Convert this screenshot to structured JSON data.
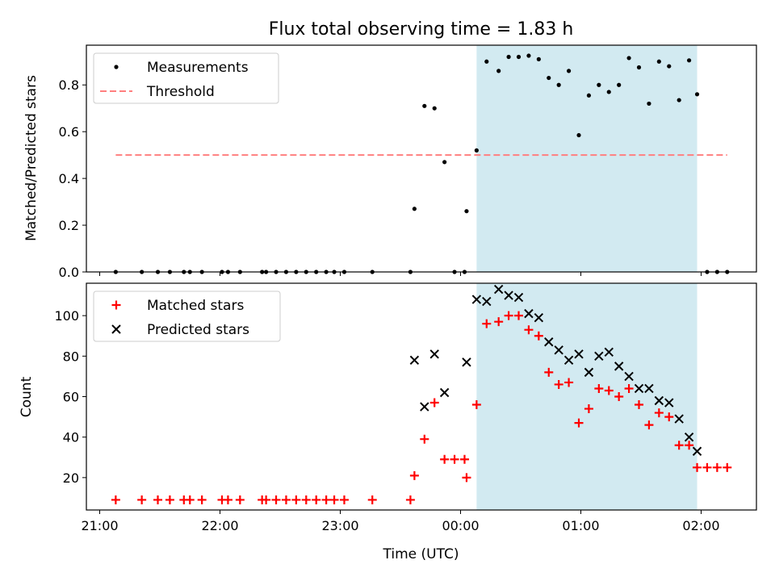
{
  "chart_data": [
    {
      "type": "scatter",
      "title": "Flux total observing time = 1.83 h",
      "xlabel": "",
      "ylabel": "Matched/Predicted stars",
      "ylim": [
        0,
        0.97
      ],
      "yticks": [
        "0.0",
        "0.2",
        "0.4",
        "0.6",
        "0.8"
      ],
      "highlight_span": {
        "start": "00:08",
        "end": "01:58",
        "color": "#add8e6"
      },
      "legend_position": "upper-left",
      "series": [
        {
          "name": "Measurements",
          "marker": "dot",
          "color": "#000000",
          "points": [
            [
              "21:08",
              0
            ],
            [
              "21:21",
              0
            ],
            [
              "21:29",
              0
            ],
            [
              "21:35",
              0
            ],
            [
              "21:42",
              0
            ],
            [
              "21:45",
              0
            ],
            [
              "21:51",
              0
            ],
            [
              "22:01",
              0
            ],
            [
              "22:04",
              0
            ],
            [
              "22:10",
              0
            ],
            [
              "22:21",
              0
            ],
            [
              "22:23",
              0
            ],
            [
              "22:28",
              0
            ],
            [
              "22:33",
              0
            ],
            [
              "22:38",
              0
            ],
            [
              "22:43",
              0
            ],
            [
              "22:48",
              0
            ],
            [
              "22:53",
              0
            ],
            [
              "22:57",
              0
            ],
            [
              "23:02",
              0
            ],
            [
              "23:16",
              0
            ],
            [
              "23:35",
              0
            ],
            [
              "23:37",
              0.27
            ],
            [
              "23:42",
              0.71
            ],
            [
              "23:47",
              0.7
            ],
            [
              "23:52",
              0.47
            ],
            [
              "23:57",
              0
            ],
            [
              "00:02",
              0
            ],
            [
              "00:03",
              0.26
            ],
            [
              "00:08",
              0.52
            ],
            [
              "00:13",
              0.9
            ],
            [
              "00:19",
              0.86
            ],
            [
              "00:24",
              0.92
            ],
            [
              "00:29",
              0.92
            ],
            [
              "00:34",
              0.925
            ],
            [
              "00:39",
              0.91
            ],
            [
              "00:44",
              0.83
            ],
            [
              "00:49",
              0.8
            ],
            [
              "00:54",
              0.86
            ],
            [
              "00:59",
              0.585
            ],
            [
              "01:04",
              0.755
            ],
            [
              "01:09",
              0.8
            ],
            [
              "01:14",
              0.77
            ],
            [
              "01:19",
              0.8
            ],
            [
              "01:24",
              0.915
            ],
            [
              "01:29",
              0.875
            ],
            [
              "01:34",
              0.72
            ],
            [
              "01:39",
              0.9
            ],
            [
              "01:44",
              0.88
            ],
            [
              "01:49",
              0.735
            ],
            [
              "01:54",
              0.905
            ],
            [
              "01:58",
              0.76
            ],
            [
              "02:03",
              0
            ],
            [
              "02:08",
              0
            ],
            [
              "02:13",
              0
            ]
          ]
        },
        {
          "name": "Threshold",
          "marker": "dashed-line",
          "color": "#ff7f7f",
          "points": [
            [
              "21:08",
              0.5
            ],
            [
              "02:13",
              0.5
            ]
          ]
        }
      ]
    },
    {
      "type": "scatter",
      "title": "",
      "xlabel": "Time (UTC)",
      "ylabel": "Count",
      "ylim": [
        4,
        116
      ],
      "yticks": [
        "20",
        "40",
        "60",
        "80",
        "100"
      ],
      "xticks": [
        "21:00",
        "22:00",
        "23:00",
        "00:00",
        "01:00",
        "02:00"
      ],
      "highlight_span": {
        "start": "00:08",
        "end": "01:58",
        "color": "#add8e6"
      },
      "legend_position": "upper-left",
      "series": [
        {
          "name": "Matched stars",
          "marker": "plus",
          "color": "#ff0000",
          "points": [
            [
              "21:08",
              9
            ],
            [
              "21:21",
              9
            ],
            [
              "21:29",
              9
            ],
            [
              "21:35",
              9
            ],
            [
              "21:42",
              9
            ],
            [
              "21:45",
              9
            ],
            [
              "21:51",
              9
            ],
            [
              "22:01",
              9
            ],
            [
              "22:04",
              9
            ],
            [
              "22:10",
              9
            ],
            [
              "22:21",
              9
            ],
            [
              "22:23",
              9
            ],
            [
              "22:28",
              9
            ],
            [
              "22:33",
              9
            ],
            [
              "22:38",
              9
            ],
            [
              "22:43",
              9
            ],
            [
              "22:48",
              9
            ],
            [
              "22:53",
              9
            ],
            [
              "22:57",
              9
            ],
            [
              "23:02",
              9
            ],
            [
              "23:16",
              9
            ],
            [
              "23:35",
              9
            ],
            [
              "23:37",
              21
            ],
            [
              "23:42",
              39
            ],
            [
              "23:47",
              57
            ],
            [
              "23:52",
              29
            ],
            [
              "23:57",
              29
            ],
            [
              "00:02",
              29
            ],
            [
              "00:03",
              20
            ],
            [
              "00:08",
              56
            ],
            [
              "00:13",
              96
            ],
            [
              "00:19",
              97
            ],
            [
              "00:24",
              100
            ],
            [
              "00:29",
              100
            ],
            [
              "00:34",
              93
            ],
            [
              "00:39",
              90
            ],
            [
              "00:44",
              72
            ],
            [
              "00:49",
              66
            ],
            [
              "00:54",
              67
            ],
            [
              "00:59",
              47
            ],
            [
              "01:04",
              54
            ],
            [
              "01:09",
              64
            ],
            [
              "01:14",
              63
            ],
            [
              "01:19",
              60
            ],
            [
              "01:24",
              64
            ],
            [
              "01:29",
              56
            ],
            [
              "01:34",
              46
            ],
            [
              "01:39",
              52
            ],
            [
              "01:44",
              50
            ],
            [
              "01:49",
              36
            ],
            [
              "01:54",
              36
            ],
            [
              "01:58",
              25
            ],
            [
              "02:03",
              25
            ],
            [
              "02:08",
              25
            ],
            [
              "02:13",
              25
            ]
          ]
        },
        {
          "name": "Predicted stars",
          "marker": "x",
          "color": "#000000",
          "points": [
            [
              "23:37",
              78
            ],
            [
              "23:42",
              55
            ],
            [
              "23:47",
              81
            ],
            [
              "23:52",
              62
            ],
            [
              "00:03",
              77
            ],
            [
              "00:08",
              108
            ],
            [
              "00:13",
              107
            ],
            [
              "00:19",
              113
            ],
            [
              "00:24",
              110
            ],
            [
              "00:29",
              109
            ],
            [
              "00:34",
              101
            ],
            [
              "00:39",
              99
            ],
            [
              "00:44",
              87
            ],
            [
              "00:49",
              83
            ],
            [
              "00:54",
              78
            ],
            [
              "00:59",
              81
            ],
            [
              "01:04",
              72
            ],
            [
              "01:09",
              80
            ],
            [
              "01:14",
              82
            ],
            [
              "01:19",
              75
            ],
            [
              "01:24",
              70
            ],
            [
              "01:29",
              64
            ],
            [
              "01:34",
              64
            ],
            [
              "01:39",
              58
            ],
            [
              "01:44",
              57
            ],
            [
              "01:49",
              49
            ],
            [
              "01:54",
              40
            ],
            [
              "01:58",
              33
            ]
          ]
        }
      ]
    }
  ]
}
